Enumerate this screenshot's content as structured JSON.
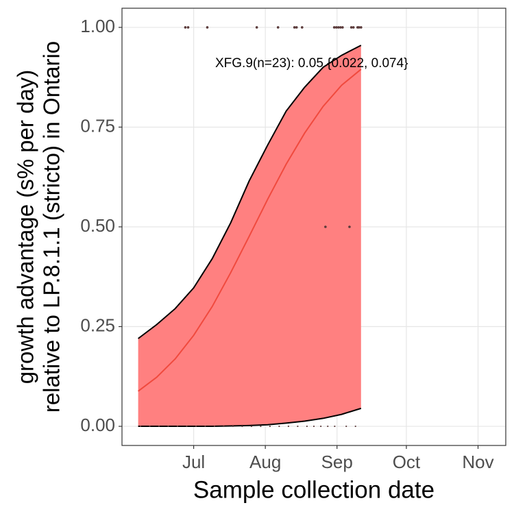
{
  "chart_data": {
    "type": "logistic-fit",
    "xlabel": "Sample collection date",
    "ylabel": [
      "growth advantage (s% per day)",
      "relative to LP.8.1.1 (stricto) in Ontario"
    ],
    "annotation": "XFG.9(n=23): 0.05 {0.022, 0.074}",
    "x": [
      158,
      166,
      174,
      182,
      190,
      198,
      206,
      214,
      222,
      230,
      238,
      246,
      254.4
    ],
    "fit": [
      0.088,
      0.123,
      0.169,
      0.228,
      0.3,
      0.385,
      0.476,
      0.569,
      0.657,
      0.735,
      0.802,
      0.855,
      0.895
    ],
    "lower": [
      0,
      0,
      0,
      0,
      0,
      0.001,
      0.002,
      0.004,
      0.008,
      0.013,
      0.02,
      0.03,
      0.045
    ],
    "upper": [
      0.22,
      0.255,
      0.295,
      0.347,
      0.42,
      0.51,
      0.615,
      0.705,
      0.79,
      0.85,
      0.9,
      0.93,
      0.955
    ],
    "fit_color": "#f04a3e",
    "ribbon_color": "#ff8080",
    "edge_color": "#000000",
    "points": {
      "x": [
        178.4,
        179.6,
        187.9,
        209.3,
        218.5,
        225.6,
        226.5,
        228.9,
        242.8,
        243.7,
        244.6,
        245.5,
        246.4,
        250.2,
        251.1,
        252.9,
        253.5,
        254.4,
        239,
        249.4,
        159,
        163,
        167,
        171,
        175,
        179,
        183,
        187,
        191,
        195,
        199,
        203,
        207,
        211,
        215,
        219,
        223,
        227,
        231,
        234,
        237,
        240,
        243,
        248,
        252
      ],
      "y": [
        1,
        1,
        1,
        1,
        1,
        1,
        1,
        1,
        1,
        1,
        1,
        1,
        1,
        1,
        1,
        1,
        1,
        1,
        0.5,
        0.5,
        0,
        0,
        0,
        0,
        0,
        0,
        0,
        0,
        0,
        0,
        0,
        0,
        0,
        0,
        0,
        0,
        0,
        0,
        0,
        0,
        0,
        0,
        0,
        0,
        0
      ],
      "color": "#5a3a3a"
    },
    "xlim": [
      151,
      317
    ],
    "ylim": [
      -0.048,
      1.048
    ],
    "xticks": [
      {
        "value": 182,
        "label": "Jul"
      },
      {
        "value": 213,
        "label": "Aug"
      },
      {
        "value": 244,
        "label": "Sep"
      },
      {
        "value": 274,
        "label": "Oct"
      },
      {
        "value": 305,
        "label": "Nov"
      }
    ],
    "yticks": [
      {
        "value": 0,
        "label": "0.00"
      },
      {
        "value": 0.25,
        "label": "0.25"
      },
      {
        "value": 0.5,
        "label": "0.50"
      },
      {
        "value": 0.75,
        "label": "0.75"
      },
      {
        "value": 1,
        "label": "1.00"
      }
    ],
    "grid": true
  }
}
